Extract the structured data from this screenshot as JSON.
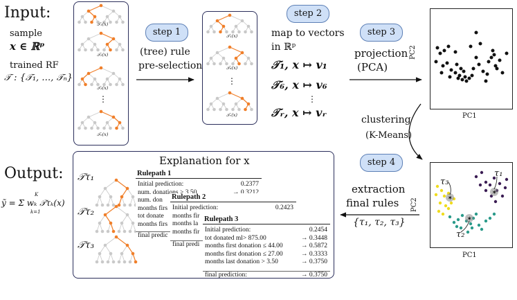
{
  "input": {
    "title": "Input:",
    "sample_label": "sample",
    "sample_math": "x ∈ ℝᵖ",
    "rf_label": "trained RF",
    "rf_math": "𝒯 : {𝒯₁, …, 𝒯ₙ}"
  },
  "forest_panel": {
    "tree_labels": [
      "𝒯₁(x)",
      "𝒯₂(x)",
      "𝒯₃(x)",
      "⋮",
      "𝒯ₙ(x)"
    ]
  },
  "step1": {
    "label": "step 1",
    "caption_line1": "(tree) rule",
    "caption_line2": "pre-selection"
  },
  "selected_panel": {
    "tree_labels": [
      "𝒯₁(x)",
      "𝒯₆(x)",
      "⋮",
      "𝒯ᵣ(x)"
    ]
  },
  "step2": {
    "label": "step 2",
    "caption_line1": "map to vectors",
    "caption_line2": "in ℝᵖ",
    "maps": [
      "𝒯₁, x ↦ v₁",
      "𝒯₆, x ↦ v₆",
      "⋮",
      "𝒯ᵣ, x ↦ vᵣ"
    ]
  },
  "step3": {
    "label": "step 3",
    "caption_line1": "projection",
    "caption_line2": "(PCA)"
  },
  "pca_plot": {
    "xlabel": "PC1",
    "ylabel": "PC2"
  },
  "clustering": {
    "line1": "clustering",
    "line2": "(K-Means)"
  },
  "step4": {
    "label": "step 4",
    "caption_line1": "extraction",
    "caption_line2": "final rules",
    "set": "{τ₁, τ₂, τ₃}"
  },
  "cluster_plot": {
    "xlabel": "PC1",
    "ylabel": "PC2",
    "labels": [
      "τ₁",
      "τ₂",
      "τ₃"
    ],
    "colors": {
      "c1": "#3b1d54",
      "c2": "#2a9a8a",
      "c3": "#f0dc1e"
    }
  },
  "output": {
    "title": "Output:",
    "formula": "ỹ = Σ wₖ 𝒯τₖ(x)",
    "sum_top": "K",
    "sum_bottom": "k=1"
  },
  "explanation": {
    "title": "Explanation for x",
    "tree_labels": [
      "𝒯τ₁",
      "𝒯τ₂",
      "𝒯τ₃"
    ],
    "rulepath1": {
      "header": "Rulepath 1",
      "rows": [
        [
          "Initial prediction:",
          "0.2377"
        ],
        [
          "num. donations > 3.50",
          "→ 0.3212"
        ],
        [
          "num. don",
          ""
        ],
        [
          "months firs",
          ""
        ],
        [
          "tot donate",
          ""
        ],
        [
          "months firs",
          ""
        ],
        [
          "final predic",
          ""
        ]
      ]
    },
    "rulepath2": {
      "header": "Rulepath 2",
      "rows": [
        [
          "Initial prediction:",
          "0.2423"
        ],
        [
          "months fir",
          ""
        ],
        [
          "months la",
          ""
        ],
        [
          "months fir",
          ""
        ],
        [
          "final predi",
          ""
        ]
      ]
    },
    "rulepath3": {
      "header": "Rulepath 3",
      "rows": [
        [
          "Initial prediction:",
          "0.2454"
        ],
        [
          "tot donated ml> 875.00",
          "→ 0.3448"
        ],
        [
          "months first donation ≤ 44.00",
          "→ 0.5872"
        ],
        [
          "months first donation ≤ 27.00",
          "→ 0.3333"
        ],
        [
          "months last donation > 3.50",
          "→ 0.3750"
        ]
      ],
      "final_label": "final prediction:",
      "final_value": "→ 0.3750"
    }
  }
}
